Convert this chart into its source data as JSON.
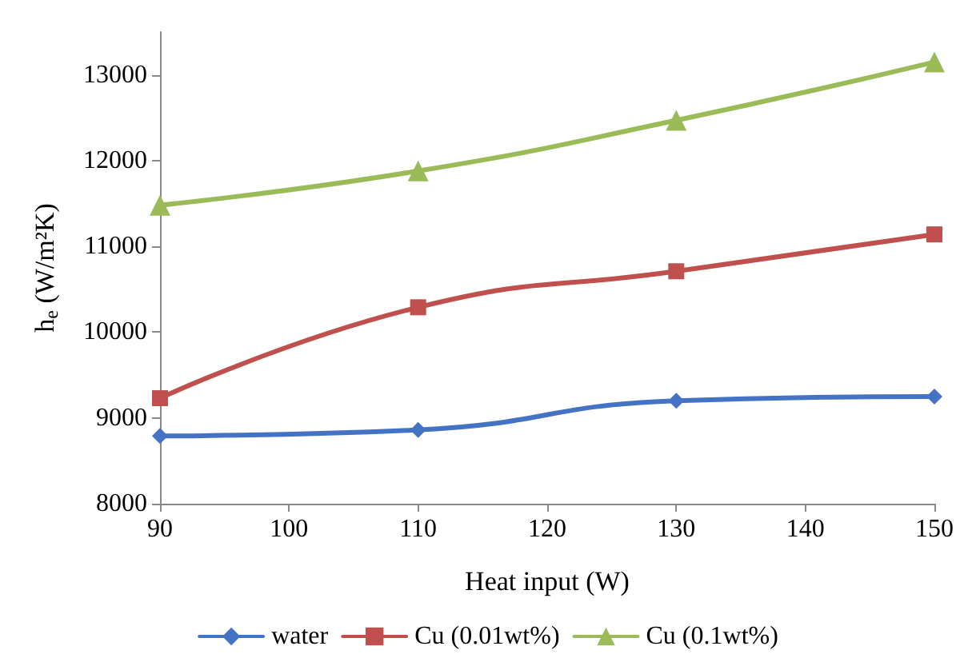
{
  "chart_data": {
    "type": "line",
    "xlabel": "Heat input (W)",
    "ylabel": "h$_{e}$ (W/m²K)",
    "x": [
      90,
      110,
      130,
      150
    ],
    "xlim": [
      90,
      150
    ],
    "xticks": [
      90,
      100,
      110,
      120,
      130,
      140,
      150
    ],
    "ylim": [
      8000,
      13500
    ],
    "yticks": [
      8000,
      9000,
      10000,
      11000,
      12000,
      13000
    ],
    "grid": false,
    "legend": "bottom",
    "line_style": "solid",
    "series": [
      {
        "name": "water",
        "color": "#4472c4",
        "marker": "diamond",
        "values": [
          8790,
          8860,
          9200,
          9250
        ]
      },
      {
        "name": "Cu (0.01wt%)",
        "color": "#c0504d",
        "marker": "square",
        "values": [
          9230,
          10290,
          10710,
          11140
        ]
      },
      {
        "name": "Cu (0.1wt%)",
        "color": "#9bbb59",
        "marker": "triangle",
        "values": [
          11480,
          11880,
          12470,
          13150
        ]
      }
    ]
  }
}
